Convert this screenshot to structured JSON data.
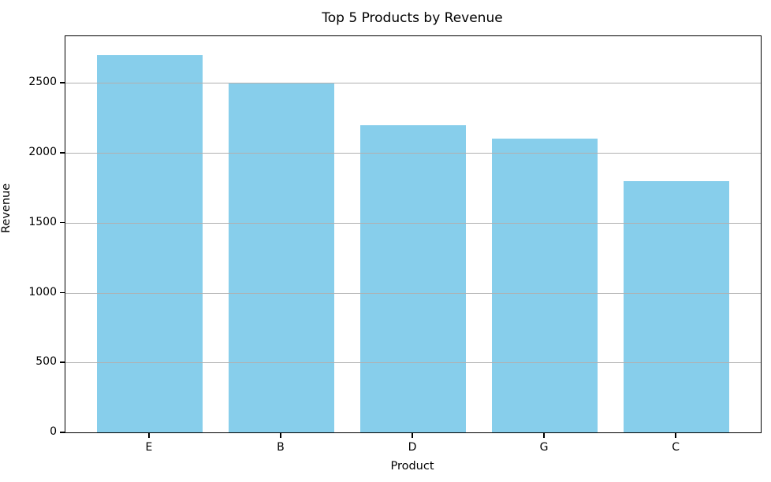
{
  "chart_data": {
    "type": "bar",
    "title": "Top 5 Products by Revenue",
    "xlabel": "Product",
    "ylabel": "Revenue",
    "categories": [
      "E",
      "B",
      "D",
      "G",
      "C"
    ],
    "values": [
      2700,
      2500,
      2200,
      2100,
      1800
    ],
    "ylim": [
      0,
      2835
    ],
    "yticks": [
      0,
      500,
      1000,
      1500,
      2000,
      2500
    ],
    "bar_color": "#87CEEB",
    "grid_color": "#b0b0b0",
    "spine_color": "#000000",
    "grid": "horizontal-on",
    "legend_position": "none",
    "background_color": "#ffffff"
  }
}
